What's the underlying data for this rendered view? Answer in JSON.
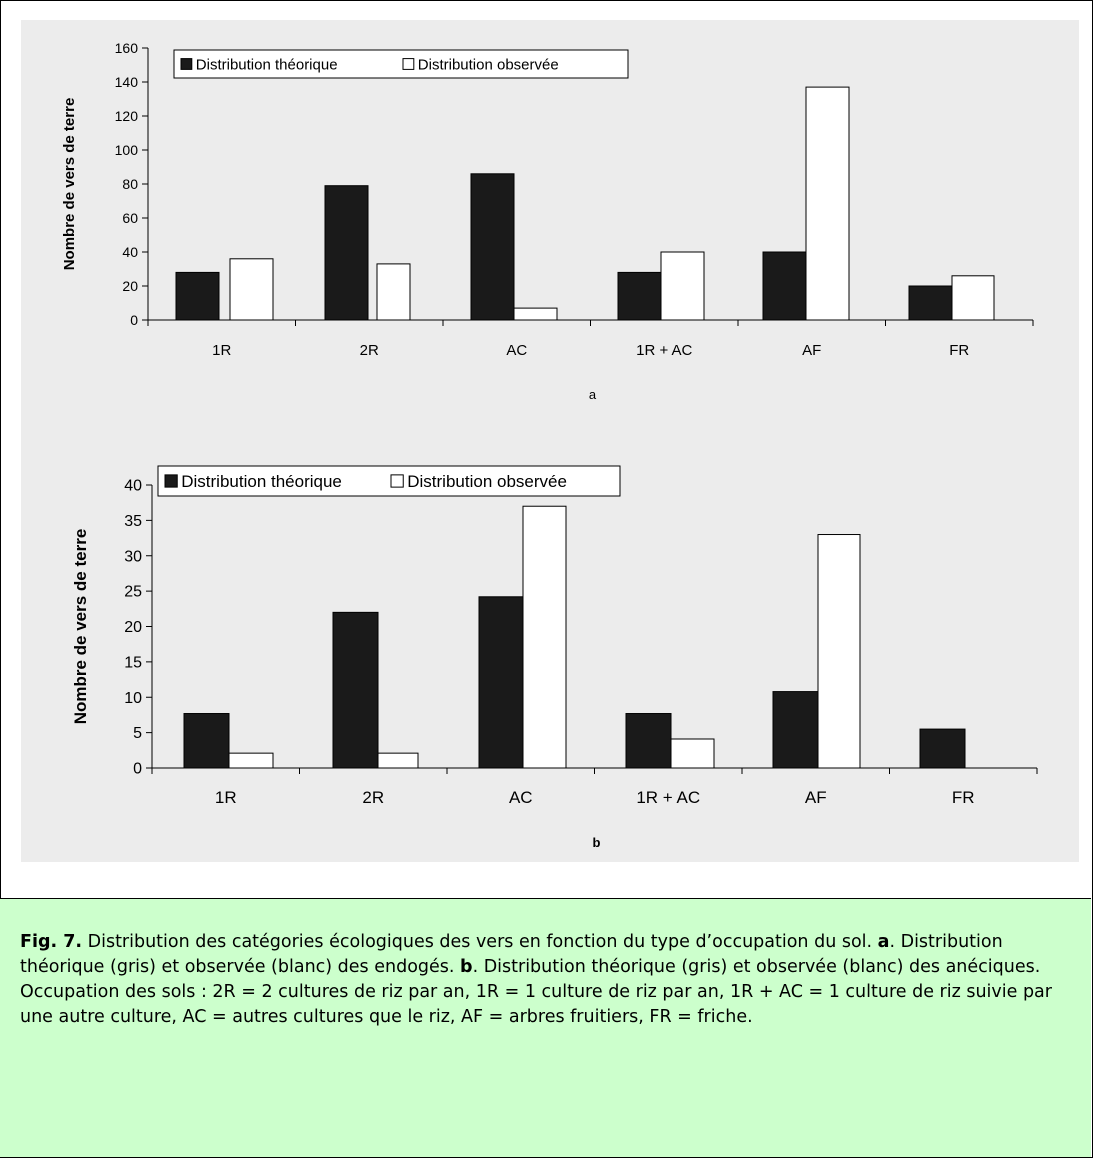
{
  "chart_data": [
    {
      "type": "bar",
      "panel_label": "a",
      "ylabel": "Nombre de vers de terre",
      "ylim": [
        0,
        160
      ],
      "yticks": [
        0,
        20,
        40,
        60,
        80,
        100,
        120,
        140,
        160
      ],
      "categories": [
        "1R",
        "2R",
        "AC",
        "1R + AC",
        "AF",
        "FR"
      ],
      "legend_position": "top-left",
      "series": [
        {
          "name": "Distribution théorique",
          "color": "#1a1a1a",
          "values": [
            28,
            79,
            86,
            28,
            40,
            20
          ]
        },
        {
          "name": "Distribution observée",
          "color": "#ffffff",
          "values": [
            36,
            33,
            7,
            40,
            137,
            26
          ]
        }
      ]
    },
    {
      "type": "bar",
      "panel_label": "b",
      "ylabel": "Nombre de vers de terre",
      "ylim": [
        0,
        40
      ],
      "yticks": [
        0,
        5,
        10,
        15,
        20,
        25,
        30,
        35,
        40
      ],
      "categories": [
        "1R",
        "2R",
        "AC",
        "1R + AC",
        "AF",
        "FR"
      ],
      "legend_position": "top-left",
      "series": [
        {
          "name": "Distribution théorique",
          "color": "#1a1a1a",
          "values": [
            7.7,
            22,
            24.2,
            7.7,
            10.8,
            5.5
          ]
        },
        {
          "name": "Distribution observée",
          "color": "#ffffff",
          "values": [
            2.1,
            2.1,
            37,
            4.1,
            33,
            0
          ]
        }
      ]
    }
  ],
  "caption": {
    "fig_label": "Fig. 7.",
    "part1": " Distribution des catégories écologiques des vers en fonction du type d’occupation du sol. ",
    "label_a": "a",
    "part2": ". Distribution théorique (gris) et observée (blanc) des endogés. ",
    "label_b": "b",
    "part3": ". Distribution théorique (gris) et observée (blanc) des anéciques. Occupation des sols : 2R = 2 cultures de riz par an, 1R = 1 culture de riz par an, 1R + AC = 1 culture de riz suivie par une autre culture, AC = autres cultures que le riz, AF = arbres fruitiers, FR = friche."
  }
}
